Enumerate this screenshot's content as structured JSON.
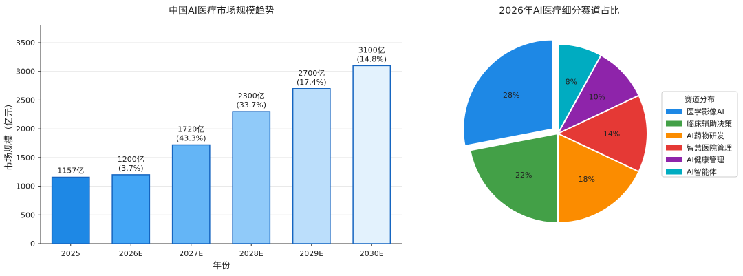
{
  "chart_data": [
    {
      "type": "bar",
      "title": "中国AI医疗市场规模趋势",
      "xlabel": "年份",
      "ylabel": "市场规模（亿元）",
      "ylim": [
        0,
        3800
      ],
      "yticks": [
        0,
        500,
        1000,
        1500,
        2000,
        2500,
        3000,
        3500
      ],
      "grid": true,
      "categories": [
        "2025",
        "2026E",
        "2027E",
        "2028E",
        "2029E",
        "2030E"
      ],
      "values": [
        1157,
        1200,
        1720,
        2300,
        2700,
        3100
      ],
      "labels": [
        [
          "1157亿"
        ],
        [
          "1200亿",
          "(3.7%)"
        ],
        [
          "1720亿",
          "(43.3%)"
        ],
        [
          "2300亿",
          "(33.7%)"
        ],
        [
          "2700亿",
          "(17.4%)"
        ],
        [
          "3100亿",
          "(14.8%)"
        ]
      ],
      "colors": [
        "#1e88e5",
        "#42a5f5",
        "#64b5f6",
        "#90caf9",
        "#bbdefb",
        "#e3f2fd"
      ],
      "edge_color": "#1565c0"
    },
    {
      "type": "pie",
      "title": "2026年AI医疗细分赛道占比",
      "legend_title": "赛道分布",
      "legend_position": "right",
      "slices": [
        {
          "label": "医学影像AI",
          "value": 28,
          "pct": "28%",
          "color": "#1e88e5",
          "explode": true
        },
        {
          "label": "临床辅助决策",
          "value": 22,
          "pct": "22%",
          "color": "#43a047",
          "explode": false
        },
        {
          "label": "AI药物研发",
          "value": 18,
          "pct": "18%",
          "color": "#fb8c00",
          "explode": false
        },
        {
          "label": "智慧医院管理",
          "value": 14,
          "pct": "14%",
          "color": "#e53935",
          "explode": false
        },
        {
          "label": "AI健康管理",
          "value": 10,
          "pct": "10%",
          "color": "#8e24aa",
          "explode": false
        },
        {
          "label": "AI智能体",
          "value": 8,
          "pct": "8%",
          "color": "#00acc1",
          "explode": false
        }
      ]
    }
  ]
}
